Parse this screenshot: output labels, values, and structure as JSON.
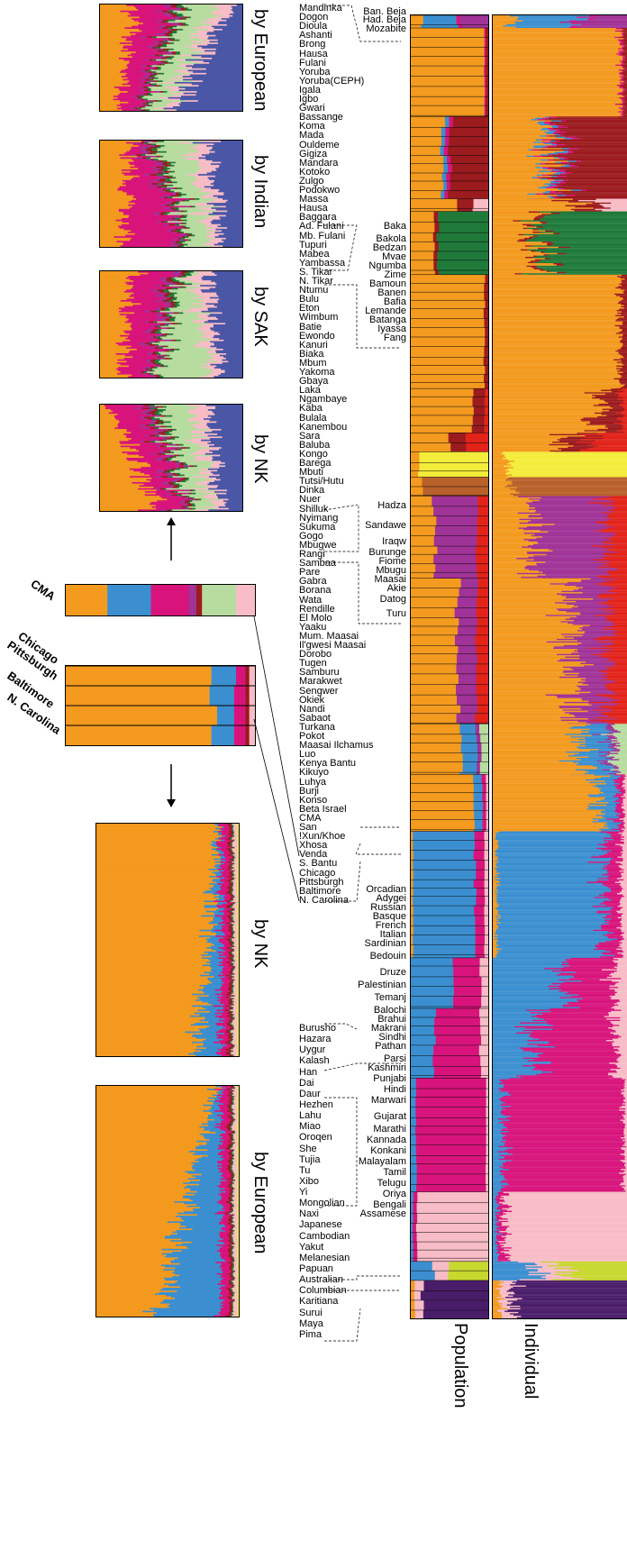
{
  "chart_data": {
    "type": "stacked-bar",
    "orientation": "horizontal",
    "column_titles": [
      "Population",
      "Individual"
    ],
    "colors": {
      "orange": "#f39a1f",
      "blue": "#3b8fd0",
      "magenta": "#d8147c",
      "purple": "#a03397",
      "darkred": "#9b1b1e",
      "red": "#e2231a",
      "green": "#1f7a3a",
      "lightgreen": "#b7dca0",
      "pink": "#f7bcc6",
      "navy": "#4a56a6",
      "yellow": "#f4ec3a",
      "brown": "#b8612a",
      "dkpurple": "#4a1d6b",
      "lime": "#c7d82f"
    },
    "populations_left": [
      "Mandinka",
      "Dogon",
      "Dioula",
      "Ashanti",
      "Brong",
      "Hausa",
      "Fulani",
      "Yoruba",
      "Yoruba(CEPH)",
      "Igala",
      "Igbo",
      "Gwari",
      "Bassange",
      "Koma",
      "Mada",
      "Ouldeme",
      "Gigiza",
      "Mandara",
      "Kotoko",
      "Zulgo",
      "Podokwo",
      "Massa",
      "Hausa",
      "Baggara",
      "Ad. Fulani",
      "Mb. Fulani",
      "Tupuri",
      "Mabea",
      "Yambassa",
      "S. Tikar",
      "N. Tikar",
      "Ntumu",
      "Bulu",
      "Eton",
      "Wimbum",
      "Batie",
      "Ewondo",
      "Kanuri",
      "Biaka",
      "Mbum",
      "Yakoma",
      "Gbaya",
      "Laka",
      "Ngambaye",
      "Kaba",
      "Bulala",
      "Kanembou",
      "Sara",
      "Baluba",
      "Kongo",
      "Barega",
      "Mbuti",
      "Tutsi/Hutu",
      "Dinka",
      "Nuer",
      "Shilluk",
      "Nyimang",
      "Sukuma",
      "Gogo",
      "Mbugwe",
      "Rangi",
      "Sambaa",
      "Pare",
      "Gabra",
      "Borana",
      "Wata",
      "Rendille",
      "El Molo",
      "Yaaku",
      "Mum. Maasai",
      "Il'gwesi Maasai",
      "Dorobo",
      "Tugen",
      "Samburu",
      "Marakwet",
      "Sengwer",
      "Okiek",
      "Nandi",
      "Sabaot",
      "Turkana",
      "Pokot",
      "Maasai Ilchamus",
      "Luo",
      "Kenya Bantu",
      "Kikuyo",
      "Luhya",
      "Burji",
      "Konso",
      "Beta Israel",
      "CMA",
      "San",
      "!Xun/Khoe",
      "Xhosa",
      "Venda",
      "S. Bantu",
      "Chicago",
      "Pittsburgh",
      "Baltimore",
      "N. Carolina"
    ],
    "populations_left_lower": [
      "Burusho",
      "Hazara",
      "Uygur",
      "Kalash",
      "Han",
      "Dai",
      "Daur",
      "Hezhen",
      "Lahu",
      "Miao",
      "Oroqen",
      "She",
      "Tujia",
      "Tu",
      "Xibo",
      "Yi",
      "Mongolian",
      "Naxi",
      "Japanese",
      "Cambodian",
      "Yakut",
      "Melanesian",
      "Papuan",
      "Australian",
      "Columbian",
      "Karitiana",
      "Surui",
      "Maya",
      "Pima"
    ],
    "populations_right": [
      "Ban. Beja",
      "Had. Beja",
      "Mozabite",
      "Baka",
      "Bakola",
      "Bedzan",
      "Mvae",
      "Ngumba",
      "Zime",
      "Bamoun",
      "Banen",
      "Bafia",
      "Lemande",
      "Batanga",
      "Iyassa",
      "Fang",
      "Hadza",
      "Sandawe",
      "Iraqw",
      "Burunge",
      "Fiome",
      "Mbugu",
      "Maasai",
      "Akie",
      "Datog",
      "Turu",
      "Orcadian",
      "Adygei",
      "Russian",
      "Basque",
      "French",
      "Italian",
      "Sardinian",
      "Bedouin",
      "Druze",
      "Palestinian",
      "Temanj",
      "Balochi",
      "Brahui",
      "Makrani",
      "Sindhi",
      "Pathan",
      "Parsi",
      "Kashmiri",
      "Punjabi",
      "Hindi",
      "Marwari",
      "Gujarat",
      "Marathi",
      "Kannada",
      "Konkani",
      "Malayalam",
      "Tamil",
      "Telugu",
      "Oriya",
      "Bengali",
      "Assamese"
    ],
    "segments": [
      {
        "from": 0,
        "to": 10,
        "mix": {
          "blue": 0.45,
          "purple": 0.35,
          "orange": 0.15,
          "magenta": 0.05
        }
      },
      {
        "from": 10,
        "to": 80,
        "mix": {
          "orange": 0.95,
          "darkred": 0.03,
          "magenta": 0.02
        }
      },
      {
        "from": 80,
        "to": 145,
        "mix": {
          "orange": 0.4,
          "darkred": 0.5,
          "magenta": 0.05,
          "blue": 0.05
        }
      },
      {
        "from": 145,
        "to": 155,
        "mix": {
          "orange": 0.6,
          "darkred": 0.2,
          "pink": 0.2
        }
      },
      {
        "from": 155,
        "to": 205,
        "mix": {
          "orange": 0.3,
          "green": 0.65,
          "darkred": 0.05
        }
      },
      {
        "from": 205,
        "to": 295,
        "mix": {
          "orange": 0.95,
          "darkred": 0.05
        }
      },
      {
        "from": 295,
        "to": 330,
        "mix": {
          "orange": 0.8,
          "darkred": 0.15,
          "red": 0.05
        }
      },
      {
        "from": 330,
        "to": 345,
        "mix": {
          "orange": 0.5,
          "red": 0.3,
          "darkred": 0.2
        }
      },
      {
        "from": 345,
        "to": 365,
        "mix": {
          "yellow": 0.9,
          "orange": 0.1
        }
      },
      {
        "from": 365,
        "to": 380,
        "mix": {
          "brown": 0.85,
          "orange": 0.15
        }
      },
      {
        "from": 380,
        "to": 445,
        "mix": {
          "purple": 0.55,
          "orange": 0.3,
          "red": 0.15
        }
      },
      {
        "from": 445,
        "to": 560,
        "mix": {
          "orange": 0.6,
          "purple": 0.25,
          "red": 0.15
        }
      },
      {
        "from": 560,
        "to": 600,
        "mix": {
          "orange": 0.65,
          "blue": 0.2,
          "lightgreen": 0.1,
          "purple": 0.05
        }
      },
      {
        "from": 600,
        "to": 645,
        "mix": {
          "orange": 0.8,
          "blue": 0.12,
          "magenta": 0.05,
          "pink": 0.03
        }
      },
      {
        "from": 645,
        "to": 745,
        "mix": {
          "blue": 0.8,
          "magenta": 0.12,
          "pink": 0.05,
          "orange": 0.03
        }
      },
      {
        "from": 745,
        "to": 785,
        "mix": {
          "blue": 0.55,
          "magenta": 0.35,
          "pink": 0.1
        }
      },
      {
        "from": 785,
        "to": 840,
        "mix": {
          "magenta": 0.6,
          "blue": 0.3,
          "pink": 0.1
        }
      },
      {
        "from": 840,
        "to": 930,
        "mix": {
          "magenta": 0.9,
          "blue": 0.07,
          "pink": 0.03
        }
      },
      {
        "from": 930,
        "to": 985,
        "mix": {
          "pink": 0.92,
          "magenta": 0.05,
          "blue": 0.03
        }
      },
      {
        "from": 985,
        "to": 1000,
        "mix": {
          "lime": 0.5,
          "blue": 0.3,
          "pink": 0.2
        }
      },
      {
        "from": 1000,
        "to": 1030,
        "mix": {
          "dkpurple": 0.85,
          "pink": 0.1,
          "orange": 0.05
        }
      }
    ],
    "cma_mix": {
      "orange": 0.22,
      "blue": 0.23,
      "pink": 0.1,
      "purple": 0.04,
      "magenta": 0.2,
      "lightgreen": 0.18,
      "darkred": 0.03
    },
    "us_cities": [
      "Chicago",
      "Pittsburgh",
      "Baltimore",
      "N. Carolina"
    ],
    "us_mix": [
      {
        "orange": 0.77,
        "blue": 0.13,
        "magenta": 0.05,
        "pink": 0.03,
        "darkred": 0.02
      },
      {
        "orange": 0.76,
        "blue": 0.13,
        "magenta": 0.06,
        "pink": 0.03,
        "darkred": 0.02
      },
      {
        "orange": 0.8,
        "blue": 0.09,
        "magenta": 0.06,
        "pink": 0.03,
        "darkred": 0.02
      },
      {
        "orange": 0.77,
        "blue": 0.12,
        "magenta": 0.06,
        "pink": 0.03,
        "darkred": 0.02
      }
    ]
  },
  "labels": {
    "cma": "CMA",
    "panel_titles": [
      "by European",
      "by Indian",
      "by SAK",
      "by NK",
      "by NK",
      "by European"
    ],
    "population": "Population",
    "individual": "Individual"
  }
}
